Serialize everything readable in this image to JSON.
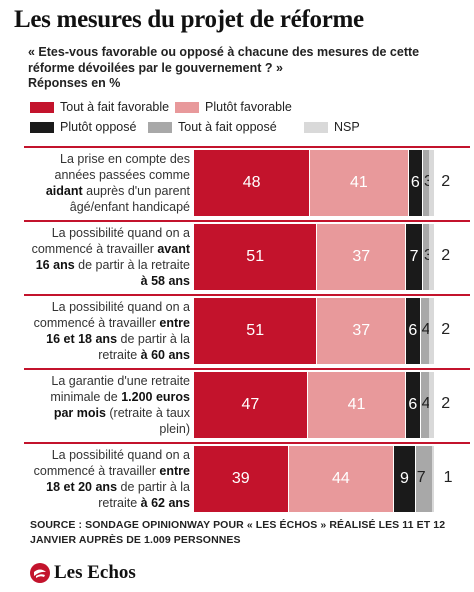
{
  "header": {
    "title": "Les mesures du projet de réforme",
    "subtitle": "« Etes-vous favorable ou opposé à chacune des mesures de cette réforme dévoilées par le gouvernement ? »",
    "unit": "Réponses en %"
  },
  "legend": [
    {
      "label": "Tout à fait favorable",
      "color": "#c3132c"
    },
    {
      "label": "Plutôt favorable",
      "color": "#e8999b"
    },
    {
      "label": "Plutôt opposé",
      "color": "#1a1a1a"
    },
    {
      "label": "Tout à fait opposé",
      "color": "#a8a8a8"
    },
    {
      "label": "NSP",
      "color": "#d9d9d9"
    }
  ],
  "rows": [
    {
      "label_parts": [
        [
          "La prise en compte des années passées comme ",
          false
        ],
        [
          "aidant",
          true
        ],
        [
          " auprès d'un parent âgé/enfant handicapé",
          false
        ]
      ]
    },
    {
      "label_parts": [
        [
          "La possibilité quand on a commencé à travailler ",
          false
        ],
        [
          "avant 16 ans",
          true
        ],
        [
          " de partir à la retraite ",
          false
        ],
        [
          "à 58 ans",
          true
        ]
      ]
    },
    {
      "label_parts": [
        [
          "La possibilité quand on a commencé à travailler ",
          false
        ],
        [
          "entre 16 et 18 ans",
          true
        ],
        [
          " de partir à la retraite ",
          false
        ],
        [
          "à 60 ans",
          true
        ]
      ]
    },
    {
      "label_parts": [
        [
          "La garantie d'une retraite minimale de ",
          false
        ],
        [
          "1.200 euros par mois",
          true
        ],
        [
          " (retraite à taux plein)",
          false
        ]
      ]
    },
    {
      "label_parts": [
        [
          "La possibilité quand on a commencé à travailler ",
          false
        ],
        [
          "entre 18 et 20 ans",
          true
        ],
        [
          " de partir à la retraite ",
          false
        ],
        [
          "à 62 ans",
          true
        ]
      ]
    }
  ],
  "chart_data": {
    "type": "bar",
    "orientation": "horizontal",
    "stacked": true,
    "categories": [
      "La prise en compte des années passées comme aidant auprès d'un parent âgé/enfant handicapé",
      "La possibilité quand on a commencé à travailler avant 16 ans de partir à la retraite à 58 ans",
      "La possibilité quand on a commencé à travailler entre 16 et 18 ans de partir à la retraite à 60 ans",
      "La garantie d'une retraite minimale de 1.200 euros par mois (retraite à taux plein)",
      "La possibilité quand on a commencé à travailler entre 18 et 20 ans de partir à la retraite à 62 ans"
    ],
    "series": [
      {
        "name": "Tout à fait favorable",
        "values": [
          48,
          51,
          51,
          47,
          39
        ]
      },
      {
        "name": "Plutôt favorable",
        "values": [
          41,
          37,
          37,
          41,
          44
        ]
      },
      {
        "name": "Plutôt opposé",
        "values": [
          6,
          7,
          6,
          6,
          9
        ]
      },
      {
        "name": "Tout à fait opposé",
        "values": [
          3,
          3,
          4,
          4,
          7
        ]
      },
      {
        "name": "NSP",
        "values": [
          2,
          2,
          2,
          2,
          1
        ]
      }
    ],
    "ylabel": "Réponses en %",
    "xlim": [
      0,
      100
    ]
  },
  "source": "SOURCE : SONDAGE OPINIONWAY POUR « LES ÉCHOS » RÉALISÉ LES 11 ET 12 JANVIER AUPRÈS DE 1.009 PERSONNES",
  "logo": "Les Echos"
}
